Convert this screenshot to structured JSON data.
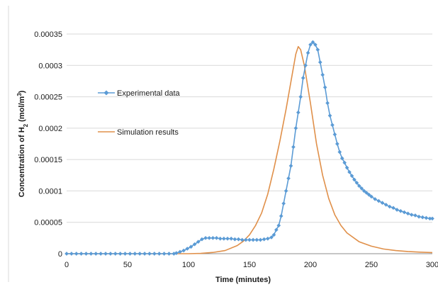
{
  "chart_data": {
    "type": "line",
    "xlabel": "Time (minutes)",
    "ylabel": "Concentration of H",
    "ylabel_sub": "2",
    "ylabel_units_prefix": " (mol/m",
    "ylabel_units_sup": "3",
    "ylabel_units_suffix": ")",
    "xlim": [
      0,
      300
    ],
    "ylim": [
      0,
      0.00035
    ],
    "x_ticks": [
      0,
      50,
      100,
      150,
      200,
      250,
      300
    ],
    "x_tick_labels": [
      "0",
      "50",
      "100",
      "150",
      "200",
      "250",
      "300"
    ],
    "y_ticks": [
      0,
      5e-05,
      0.0001,
      0.00015,
      0.0002,
      0.00025,
      0.0003,
      0.00035
    ],
    "y_tick_labels": [
      "0",
      "0.00005",
      "0.0001",
      "0.00015",
      "0.0002",
      "0.00025",
      "0.0003",
      "0.00035"
    ],
    "grid": "horizontal",
    "legend_placement": "top-left",
    "series": [
      {
        "name": "Experimental data",
        "style": "line-with-markers",
        "color": "#5b9bd5",
        "points": [
          [
            0,
            0
          ],
          [
            4,
            0
          ],
          [
            8,
            0
          ],
          [
            12,
            0
          ],
          [
            16,
            0
          ],
          [
            20,
            0
          ],
          [
            24,
            0
          ],
          [
            28,
            0
          ],
          [
            32,
            0
          ],
          [
            36,
            0
          ],
          [
            40,
            0
          ],
          [
            44,
            0
          ],
          [
            48,
            0
          ],
          [
            52,
            0
          ],
          [
            56,
            0
          ],
          [
            60,
            0
          ],
          [
            64,
            0
          ],
          [
            68,
            0
          ],
          [
            72,
            0
          ],
          [
            76,
            0
          ],
          [
            80,
            0
          ],
          [
            84,
            0
          ],
          [
            88,
            0
          ],
          [
            90,
            1e-06
          ],
          [
            93,
            3e-06
          ],
          [
            96,
            5e-06
          ],
          [
            99,
            8e-06
          ],
          [
            102,
            1.1e-05
          ],
          [
            105,
            1.5e-05
          ],
          [
            108,
            1.9e-05
          ],
          [
            111,
            2.3e-05
          ],
          [
            114,
            2.5e-05
          ],
          [
            117,
            2.5e-05
          ],
          [
            120,
            2.5e-05
          ],
          [
            123,
            2.5e-05
          ],
          [
            126,
            2.4e-05
          ],
          [
            129,
            2.4e-05
          ],
          [
            132,
            2.4e-05
          ],
          [
            135,
            2.4e-05
          ],
          [
            138,
            2.3e-05
          ],
          [
            141,
            2.3e-05
          ],
          [
            144,
            2.2e-05
          ],
          [
            147,
            2.2e-05
          ],
          [
            150,
            2.2e-05
          ],
          [
            153,
            2.2e-05
          ],
          [
            156,
            2.2e-05
          ],
          [
            159,
            2.2e-05
          ],
          [
            162,
            2.3e-05
          ],
          [
            165,
            2.4e-05
          ],
          [
            168,
            2.6e-05
          ],
          [
            170,
            3e-05
          ],
          [
            172,
            3.8e-05
          ],
          [
            174,
            4.5e-05
          ],
          [
            176,
            6e-05
          ],
          [
            178,
            8e-05
          ],
          [
            180,
            0.0001
          ],
          [
            182,
            0.00012
          ],
          [
            184,
            0.00014
          ],
          [
            186,
            0.00017
          ],
          [
            188,
            0.0002
          ],
          [
            190,
            0.000225
          ],
          [
            192,
            0.00025
          ],
          [
            194,
            0.00028
          ],
          [
            196,
            0.0003
          ],
          [
            198,
            0.00032
          ],
          [
            200,
            0.000333
          ],
          [
            202,
            0.000337
          ],
          [
            204,
            0.000333
          ],
          [
            206,
            0.000325
          ],
          [
            208,
            0.000305
          ],
          [
            210,
            0.000285
          ],
          [
            212,
            0.000265
          ],
          [
            214,
            0.00024
          ],
          [
            216,
            0.00022
          ],
          [
            218,
            0.000205
          ],
          [
            220,
            0.00019
          ],
          [
            222,
            0.000175
          ],
          [
            224,
            0.000162
          ],
          [
            226,
            0.000152
          ],
          [
            228,
            0.000145
          ],
          [
            230,
            0.000137
          ],
          [
            232,
            0.00013
          ],
          [
            234,
            0.000124
          ],
          [
            236,
            0.000118
          ],
          [
            238,
            0.000113
          ],
          [
            240,
            0.000108
          ],
          [
            242,
            0.000104
          ],
          [
            244,
            0.0001
          ],
          [
            246,
            9.7e-05
          ],
          [
            248,
            9.4e-05
          ],
          [
            250,
            9.1e-05
          ],
          [
            253,
            8.7e-05
          ],
          [
            256,
            8.4e-05
          ],
          [
            259,
            8.1e-05
          ],
          [
            262,
            7.8e-05
          ],
          [
            265,
            7.5e-05
          ],
          [
            268,
            7.3e-05
          ],
          [
            271,
            7e-05
          ],
          [
            274,
            6.8e-05
          ],
          [
            277,
            6.6e-05
          ],
          [
            280,
            6.4e-05
          ],
          [
            283,
            6.2e-05
          ],
          [
            286,
            6.1e-05
          ],
          [
            289,
            5.9e-05
          ],
          [
            292,
            5.8e-05
          ],
          [
            295,
            5.7e-05
          ],
          [
            298,
            5.6e-05
          ],
          [
            300,
            5.6e-05
          ]
        ]
      },
      {
        "name": "Simulation results",
        "style": "line",
        "color": "#e0904a",
        "points": [
          [
            0,
            0
          ],
          [
            100,
            0
          ],
          [
            110,
            5e-07
          ],
          [
            120,
            2e-06
          ],
          [
            130,
            5e-06
          ],
          [
            140,
            1.3e-05
          ],
          [
            145,
            2e-05
          ],
          [
            150,
            3e-05
          ],
          [
            155,
            4.5e-05
          ],
          [
            160,
            6.5e-05
          ],
          [
            165,
            9.5e-05
          ],
          [
            170,
            0.000135
          ],
          [
            175,
            0.00018
          ],
          [
            180,
            0.00023
          ],
          [
            185,
            0.000285
          ],
          [
            188,
            0.000318
          ],
          [
            190,
            0.00033
          ],
          [
            192,
            0.000325
          ],
          [
            195,
            0.0003
          ],
          [
            200,
            0.00024
          ],
          [
            205,
            0.000175
          ],
          [
            210,
            0.000125
          ],
          [
            215,
            8.8e-05
          ],
          [
            220,
            6.2e-05
          ],
          [
            225,
            4.5e-05
          ],
          [
            230,
            3.3e-05
          ],
          [
            240,
            1.9e-05
          ],
          [
            250,
            1.2e-05
          ],
          [
            260,
            7.5e-06
          ],
          [
            270,
            5e-06
          ],
          [
            280,
            3.5e-06
          ],
          [
            290,
            2.5e-06
          ],
          [
            300,
            1.8e-06
          ]
        ]
      }
    ]
  }
}
